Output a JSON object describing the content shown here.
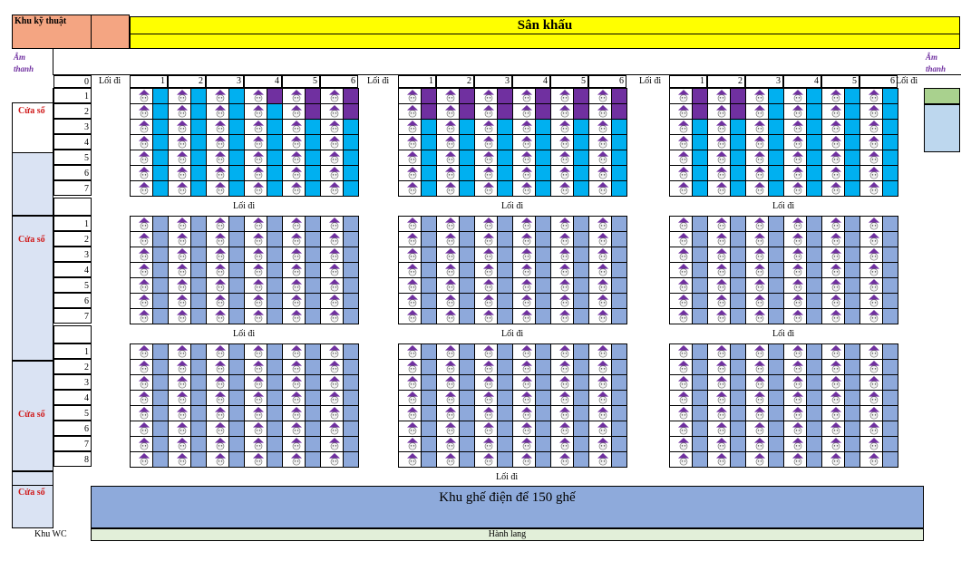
{
  "header": {
    "tech_area": "Khu kỹ thuật",
    "stage": "Sân khấu",
    "sound_left": "Âm thanh",
    "sound_right": "Âm thanh"
  },
  "side": {
    "windows": [
      "Cửa sổ",
      "Cửa sổ",
      "Cửa sổ",
      "Cửa sổ"
    ],
    "wc": "Khu WC"
  },
  "aisle_label": "Lối đi",
  "header_rows": [
    {
      "label": "0"
    }
  ],
  "block_rows": {
    "row_set_1": [
      "1",
      "2",
      "3",
      "4",
      "5",
      "6",
      "7"
    ],
    "row_set_2": [
      "1",
      "2",
      "3",
      "4",
      "5",
      "6",
      "7"
    ],
    "row_set_3": [
      "1",
      "2",
      "3",
      "4",
      "5",
      "6",
      "7",
      "8"
    ]
  },
  "column_numbers": [
    "1",
    "2",
    "3",
    "4",
    "5",
    "6"
  ],
  "bottom": {
    "electric_area": "Khu ghế điện để 150 ghế",
    "corridor": "Hành lang"
  },
  "colors": {
    "stage": "#ffff00",
    "tech": "#f4a582",
    "seat_vip": "#7030a0",
    "seat_premium": "#00b0f0",
    "seat_standard": "#8ea9db",
    "window_fill": "#dae3f3",
    "green_block": "#a9d18e",
    "blue_block": "#bdd7ee",
    "electric_area": "#8eaadb",
    "corridor": "#e2efd9"
  }
}
